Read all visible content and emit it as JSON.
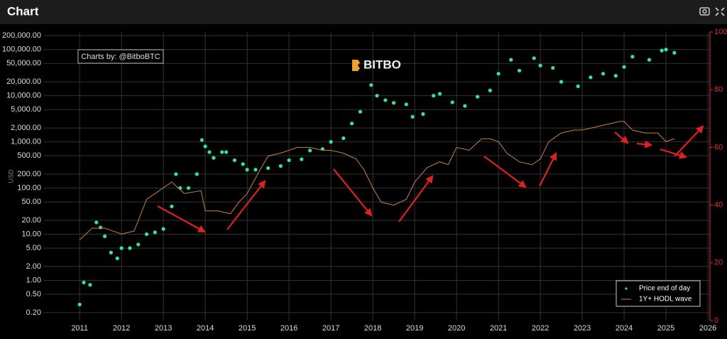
{
  "chart_data": {
    "type": "combo",
    "title": "Chart",
    "annotations": [
      "Charts by: @BitboBTC",
      "BITBO"
    ],
    "ylabel": "USD",
    "ylog": true,
    "grid": true,
    "legend": "lower right",
    "xlim": [
      2010.15,
      2026.05
    ],
    "xticks": [
      2011,
      2012,
      2013,
      2014,
      2015,
      2016,
      2017,
      2018,
      2019,
      2020,
      2021,
      2022,
      2023,
      2024,
      2025,
      2026
    ],
    "ylim": [
      0.135,
      240000
    ],
    "yticks": [
      {
        "value": 0.2,
        "label": "0.20"
      },
      {
        "value": 0.5,
        "label": "0.50"
      },
      {
        "value": 1,
        "label": "1.00"
      },
      {
        "value": 2,
        "label": "2.00"
      },
      {
        "value": 5,
        "label": "5.00"
      },
      {
        "value": 10,
        "label": "10.00"
      },
      {
        "value": 20,
        "label": "20.00"
      },
      {
        "value": 50,
        "label": "50.00"
      },
      {
        "value": 100,
        "label": "100.00"
      },
      {
        "value": 200,
        "label": "200.00"
      },
      {
        "value": 500,
        "label": "500.00"
      },
      {
        "value": 1000,
        "label": "1,000.00"
      },
      {
        "value": 2000,
        "label": "2,000.00"
      },
      {
        "value": 5000,
        "label": "5,000.00"
      },
      {
        "value": 10000,
        "label": "10,000.00"
      },
      {
        "value": 20000,
        "label": "20,000.00"
      },
      {
        "value": 50000,
        "label": "50,000.00"
      },
      {
        "value": 100000,
        "label": "100,000.00"
      },
      {
        "value": 200000,
        "label": "200,000.00"
      }
    ],
    "y2lim": [
      0,
      100
    ],
    "y2ticks": [
      0,
      20,
      40,
      60,
      80,
      100
    ],
    "y2color": "#e03030",
    "series": [
      {
        "name": "Price end of day",
        "type": "scatter",
        "color": "#2ee89a",
        "x": [
          2011.0,
          2011.1,
          2011.25,
          2011.4,
          2011.5,
          2011.6,
          2011.75,
          2011.9,
          2012.0,
          2012.2,
          2012.4,
          2012.6,
          2012.8,
          2013.0,
          2013.2,
          2013.3,
          2013.4,
          2013.6,
          2013.8,
          2013.92,
          2014.0,
          2014.1,
          2014.2,
          2014.4,
          2014.5,
          2014.7,
          2014.9,
          2015.0,
          2015.2,
          2015.5,
          2015.8,
          2016.0,
          2016.3,
          2016.5,
          2016.8,
          2017.0,
          2017.3,
          2017.5,
          2017.7,
          2017.96,
          2018.1,
          2018.3,
          2018.5,
          2018.8,
          2018.95,
          2019.2,
          2019.45,
          2019.6,
          2019.9,
          2020.2,
          2020.5,
          2020.8,
          2021.0,
          2021.3,
          2021.5,
          2021.85,
          2022.0,
          2022.3,
          2022.5,
          2022.9,
          2023.2,
          2023.5,
          2023.8,
          2024.0,
          2024.2,
          2024.6,
          2024.9,
          2025.0,
          2025.2
        ],
        "values": [
          0.3,
          0.9,
          0.8,
          18,
          14,
          9,
          4,
          3,
          5,
          5,
          6,
          10,
          11,
          13,
          40,
          200,
          100,
          100,
          200,
          1100,
          800,
          600,
          450,
          600,
          600,
          400,
          330,
          250,
          250,
          270,
          300,
          400,
          420,
          650,
          700,
          1000,
          1200,
          2500,
          4500,
          17000,
          10000,
          8000,
          7000,
          6500,
          3500,
          4000,
          10000,
          11000,
          7200,
          6000,
          9500,
          13000,
          30000,
          60000,
          35000,
          65000,
          45000,
          40000,
          20000,
          16000,
          25000,
          30000,
          27000,
          42000,
          70000,
          60000,
          95000,
          100000,
          85000
        ]
      },
      {
        "name": "1Y+ HODL wave",
        "type": "line",
        "axis": "y2",
        "color": "#c8823a",
        "x": [
          2011.0,
          2011.3,
          2011.6,
          2012.0,
          2012.3,
          2012.6,
          2012.9,
          2013.2,
          2013.5,
          2013.9,
          2014.0,
          2014.3,
          2014.6,
          2014.8,
          2015.0,
          2015.3,
          2015.5,
          2015.8,
          2016.0,
          2016.2,
          2016.5,
          2016.8,
          2017.0,
          2017.3,
          2017.6,
          2017.8,
          2018.0,
          2018.2,
          2018.5,
          2018.8,
          2019.0,
          2019.3,
          2019.6,
          2019.8,
          2020.0,
          2020.3,
          2020.6,
          2020.8,
          2021.0,
          2021.2,
          2021.5,
          2021.8,
          2022.0,
          2022.2,
          2022.5,
          2022.8,
          2023.0,
          2023.3,
          2023.6,
          2023.9,
          2024.0,
          2024.2,
          2024.5,
          2024.8,
          2025.0,
          2025.2
        ],
        "values": [
          28,
          32,
          32,
          30,
          31,
          42,
          45,
          48,
          44,
          45,
          38,
          38,
          37,
          41,
          44,
          52,
          57,
          58,
          59,
          60,
          60,
          59,
          59,
          58,
          56,
          52,
          46,
          41,
          40,
          42,
          48,
          53,
          55,
          54,
          60,
          59,
          63,
          63,
          62,
          58,
          55,
          54,
          56,
          62,
          65,
          66,
          66,
          67,
          68,
          69,
          69,
          66,
          65,
          65,
          62,
          63
        ]
      }
    ]
  }
}
